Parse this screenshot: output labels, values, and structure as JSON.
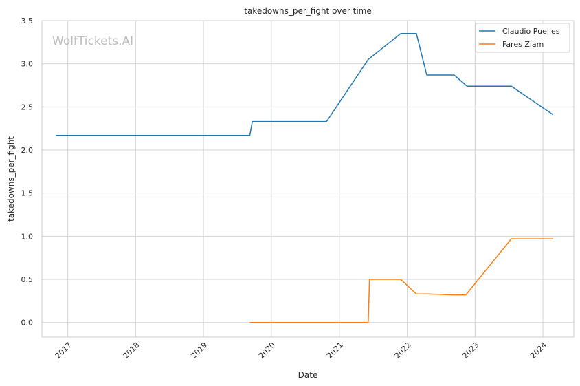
{
  "chart_data": {
    "type": "line",
    "title": "takedowns_per_fight over time",
    "xlabel": "Date",
    "ylabel": "takedowns_per_fight",
    "watermark": "WolfTickets.AI",
    "x_ticks": [
      "2017",
      "2018",
      "2019",
      "2020",
      "2021",
      "2022",
      "2023",
      "2024"
    ],
    "y_ticks": [
      "0.0",
      "0.5",
      "1.0",
      "1.5",
      "2.0",
      "2.5",
      "3.0",
      "3.5"
    ],
    "ylim": [
      -0.17,
      3.5
    ],
    "xlim": [
      "2016-08-15",
      "2024-06-15"
    ],
    "grid": true,
    "legend_position": "top-right",
    "series": [
      {
        "name": "Claudio Puelles",
        "color": "#1f77b4",
        "points": [
          [
            "2016-10-29",
            2.17
          ],
          [
            "2019-09-07",
            2.17
          ],
          [
            "2019-09-21",
            2.33
          ],
          [
            "2020-10-24",
            2.33
          ],
          [
            "2021-06-05",
            3.05
          ],
          [
            "2021-11-27",
            3.35
          ],
          [
            "2022-02-19",
            3.35
          ],
          [
            "2022-04-16",
            2.87
          ],
          [
            "2022-09-10",
            2.87
          ],
          [
            "2022-11-19",
            2.74
          ],
          [
            "2023-07-15",
            2.74
          ],
          [
            "2024-02-24",
            2.41
          ]
        ]
      },
      {
        "name": "Fares Ziam",
        "color": "#ff7f0e",
        "points": [
          [
            "2019-09-07",
            0.0
          ],
          [
            "2021-06-05",
            0.0
          ],
          [
            "2021-06-12",
            0.5
          ],
          [
            "2021-11-27",
            0.5
          ],
          [
            "2022-02-19",
            0.33
          ],
          [
            "2022-04-16",
            0.33
          ],
          [
            "2022-09-10",
            0.32
          ],
          [
            "2022-11-12",
            0.32
          ],
          [
            "2023-07-15",
            0.97
          ],
          [
            "2024-02-24",
            0.97
          ]
        ]
      }
    ]
  }
}
